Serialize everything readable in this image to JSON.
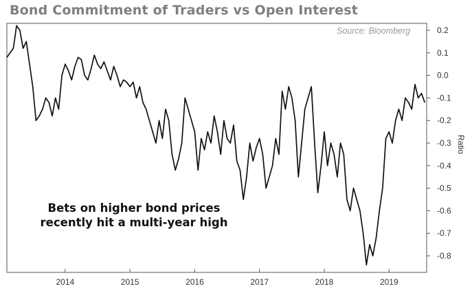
{
  "chart_data": {
    "type": "line",
    "title": "Bond Commitment of Traders vs Open Interest",
    "source": "Source: Bloomberg",
    "annotation_lines": [
      "Bets on higher bond prices",
      "recently hit a multi-year high"
    ],
    "ylabel": "Ratio",
    "ylim": [
      -0.85,
      0.22
    ],
    "xlim": [
      2013.1,
      2019.58
    ],
    "yticks": [
      "0.2",
      "0.1",
      "0.0",
      "-0.1",
      "-0.2",
      "-0.3",
      "-0.4",
      "-0.5",
      "-0.6",
      "-0.7",
      "-0.8"
    ],
    "xticks": [
      "2014",
      "2015",
      "2016",
      "2017",
      "2018",
      "2019"
    ],
    "grid": false,
    "series": [
      {
        "name": "",
        "x": [
          2013.1,
          2013.15,
          2013.2,
          2013.25,
          2013.3,
          2013.35,
          2013.4,
          2013.45,
          2013.5,
          2013.55,
          2013.6,
          2013.65,
          2013.7,
          2013.75,
          2013.8,
          2013.85,
          2013.9,
          2013.95,
          2014.0,
          2014.05,
          2014.1,
          2014.15,
          2014.2,
          2014.25,
          2014.3,
          2014.35,
          2014.4,
          2014.45,
          2014.5,
          2014.55,
          2014.6,
          2014.65,
          2014.7,
          2014.75,
          2014.8,
          2014.85,
          2014.9,
          2014.95,
          2015.0,
          2015.05,
          2015.1,
          2015.15,
          2015.2,
          2015.25,
          2015.3,
          2015.35,
          2015.4,
          2015.45,
          2015.5,
          2015.55,
          2015.6,
          2015.65,
          2015.7,
          2015.75,
          2015.8,
          2015.85,
          2015.9,
          2015.95,
          2016.0,
          2016.05,
          2016.1,
          2016.15,
          2016.2,
          2016.25,
          2016.3,
          2016.35,
          2016.4,
          2016.45,
          2016.5,
          2016.55,
          2016.6,
          2016.65,
          2016.7,
          2016.75,
          2016.8,
          2016.85,
          2016.9,
          2016.95,
          2017.0,
          2017.05,
          2017.1,
          2017.15,
          2017.2,
          2017.25,
          2017.3,
          2017.35,
          2017.4,
          2017.45,
          2017.5,
          2017.55,
          2017.6,
          2017.65,
          2017.7,
          2017.75,
          2017.8,
          2017.85,
          2017.9,
          2017.95,
          2018.0,
          2018.05,
          2018.1,
          2018.15,
          2018.2,
          2018.25,
          2018.3,
          2018.35,
          2018.4,
          2018.45,
          2018.5,
          2018.55,
          2018.6,
          2018.65,
          2018.7,
          2018.75,
          2018.8,
          2018.85,
          2018.9,
          2018.95,
          2019.0,
          2019.05,
          2019.1,
          2019.15,
          2019.2,
          2019.25,
          2019.3,
          2019.35,
          2019.4,
          2019.45,
          2019.5,
          2019.55
        ],
        "y": [
          0.08,
          0.1,
          0.12,
          0.22,
          0.2,
          0.12,
          0.15,
          0.05,
          -0.05,
          -0.2,
          -0.18,
          -0.15,
          -0.1,
          -0.12,
          -0.18,
          -0.1,
          -0.15,
          0.0,
          0.05,
          0.02,
          -0.02,
          0.04,
          0.08,
          0.07,
          0.0,
          -0.02,
          0.03,
          0.09,
          0.05,
          0.03,
          0.06,
          0.02,
          -0.02,
          0.04,
          0.0,
          -0.05,
          -0.02,
          -0.03,
          -0.05,
          -0.03,
          -0.1,
          -0.05,
          -0.12,
          -0.15,
          -0.2,
          -0.25,
          -0.3,
          -0.2,
          -0.28,
          -0.15,
          -0.2,
          -0.35,
          -0.42,
          -0.37,
          -0.3,
          -0.1,
          -0.15,
          -0.2,
          -0.25,
          -0.42,
          -0.28,
          -0.33,
          -0.25,
          -0.3,
          -0.18,
          -0.25,
          -0.35,
          -0.2,
          -0.28,
          -0.3,
          -0.22,
          -0.38,
          -0.42,
          -0.55,
          -0.45,
          -0.3,
          -0.38,
          -0.32,
          -0.28,
          -0.35,
          -0.5,
          -0.45,
          -0.4,
          -0.28,
          -0.35,
          -0.07,
          -0.15,
          -0.05,
          -0.1,
          -0.2,
          -0.45,
          -0.3,
          -0.15,
          -0.1,
          -0.05,
          -0.3,
          -0.52,
          -0.4,
          -0.25,
          -0.4,
          -0.3,
          -0.35,
          -0.45,
          -0.3,
          -0.35,
          -0.55,
          -0.6,
          -0.5,
          -0.55,
          -0.6,
          -0.7,
          -0.84,
          -0.75,
          -0.8,
          -0.72,
          -0.6,
          -0.5,
          -0.28,
          -0.25,
          -0.3,
          -0.2,
          -0.15,
          -0.2,
          -0.1,
          -0.12,
          -0.15,
          -0.04,
          -0.1,
          -0.08,
          -0.12
        ]
      }
    ]
  }
}
